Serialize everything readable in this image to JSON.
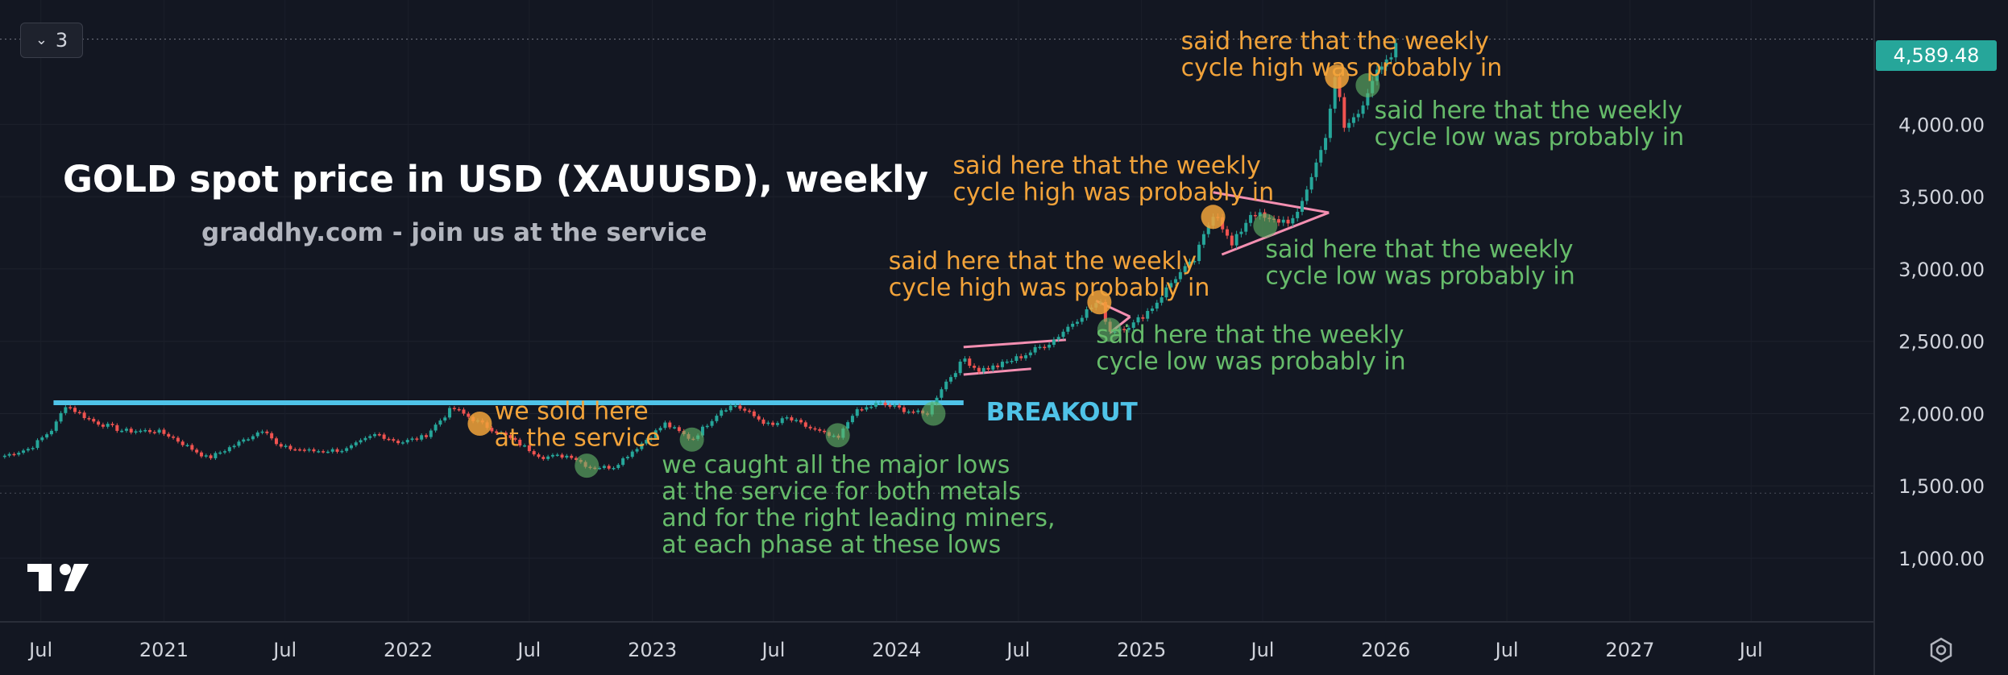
{
  "toolbar": {
    "collapse_label": "3",
    "collapse_icon": "chevron-down-icon"
  },
  "chart_data": {
    "type": "candlestick",
    "title": "GOLD spot price in USD (XAUUSD), weekly",
    "subtitle": "graddhy.com - join us at the service",
    "last_price": "4,589.48",
    "colors": {
      "up": "#26a69a",
      "down": "#ef5350",
      "orange": "#f2a33a",
      "green": "#66bb6a",
      "cyan": "#4fc3e8",
      "pink": "#f48fb1"
    },
    "y_ticks": [
      {
        "value": 4000,
        "label": "4,000.00"
      },
      {
        "value": 3500,
        "label": "3,500.00"
      },
      {
        "value": 3000,
        "label": "3,000.00"
      },
      {
        "value": 2500,
        "label": "2,500.00"
      },
      {
        "value": 2000,
        "label": "2,000.00"
      },
      {
        "value": 1500,
        "label": "1,500.00"
      },
      {
        "value": 1000,
        "label": "1,000.00"
      }
    ],
    "ylim": [
      560,
      4860
    ],
    "x_range": [
      "2020-05-01",
      "2028-01-01"
    ],
    "x_ticks": [
      {
        "date": "2020-07-01",
        "label": "Jul"
      },
      {
        "date": "2021-01-01",
        "label": "2021"
      },
      {
        "date": "2021-07-01",
        "label": "Jul"
      },
      {
        "date": "2022-01-01",
        "label": "2022"
      },
      {
        "date": "2022-07-01",
        "label": "Jul"
      },
      {
        "date": "2023-01-01",
        "label": "2023"
      },
      {
        "date": "2023-07-01",
        "label": "Jul"
      },
      {
        "date": "2024-01-01",
        "label": "2024"
      },
      {
        "date": "2024-07-01",
        "label": "Jul"
      },
      {
        "date": "2025-01-01",
        "label": "2025"
      },
      {
        "date": "2025-07-01",
        "label": "Jul"
      },
      {
        "date": "2026-01-01",
        "label": "2026"
      },
      {
        "date": "2026-07-01",
        "label": "Jul"
      },
      {
        "date": "2027-01-01",
        "label": "2027"
      },
      {
        "date": "2027-07-01",
        "label": "Jul"
      }
    ],
    "series": [
      {
        "name": "XAUUSD",
        "points": [
          [
            "2020-05-01",
            1700
          ],
          [
            "2020-06-15",
            1760
          ],
          [
            "2020-07-20",
            1900
          ],
          [
            "2020-08-07",
            2060
          ],
          [
            "2020-09-15",
            1950
          ],
          [
            "2020-11-01",
            1880
          ],
          [
            "2020-12-20",
            1880
          ],
          [
            "2021-01-08",
            1850
          ],
          [
            "2021-03-08",
            1690
          ],
          [
            "2021-04-20",
            1790
          ],
          [
            "2021-06-01",
            1900
          ],
          [
            "2021-06-20",
            1770
          ],
          [
            "2021-08-10",
            1740
          ],
          [
            "2021-09-30",
            1750
          ],
          [
            "2021-11-15",
            1860
          ],
          [
            "2021-12-20",
            1800
          ],
          [
            "2022-01-25",
            1840
          ],
          [
            "2022-03-08",
            2040
          ],
          [
            "2022-04-20",
            1930
          ],
          [
            "2022-05-25",
            1850
          ],
          [
            "2022-07-20",
            1700
          ],
          [
            "2022-09-01",
            1710
          ],
          [
            "2022-09-28",
            1630
          ],
          [
            "2022-11-03",
            1630
          ],
          [
            "2022-12-15",
            1790
          ],
          [
            "2023-01-20",
            1930
          ],
          [
            "2023-03-01",
            1820
          ],
          [
            "2023-04-14",
            2030
          ],
          [
            "2023-05-04",
            2060
          ],
          [
            "2023-06-28",
            1910
          ],
          [
            "2023-07-20",
            1970
          ],
          [
            "2023-08-24",
            1900
          ],
          [
            "2023-10-05",
            1820
          ],
          [
            "2023-10-27",
            2000
          ],
          [
            "2023-12-04",
            2070
          ],
          [
            "2024-01-18",
            2020
          ],
          [
            "2024-02-14",
            1990
          ],
          [
            "2024-03-08",
            2180
          ],
          [
            "2024-04-12",
            2380
          ],
          [
            "2024-05-01",
            2300
          ],
          [
            "2024-06-01",
            2330
          ],
          [
            "2024-07-12",
            2410
          ],
          [
            "2024-08-20",
            2500
          ],
          [
            "2024-09-25",
            2650
          ],
          [
            "2024-10-30",
            2780
          ],
          [
            "2024-11-14",
            2570
          ],
          [
            "2024-12-20",
            2620
          ],
          [
            "2025-01-20",
            2750
          ],
          [
            "2025-02-20",
            2940
          ],
          [
            "2025-03-20",
            3050
          ],
          [
            "2025-04-21",
            3420
          ],
          [
            "2025-05-15",
            3150
          ],
          [
            "2025-06-15",
            3400
          ],
          [
            "2025-07-10",
            3330
          ],
          [
            "2025-08-20",
            3340
          ],
          [
            "2025-09-05",
            3560
          ],
          [
            "2025-10-01",
            3880
          ],
          [
            "2025-10-20",
            4380
          ],
          [
            "2025-10-28",
            3960
          ],
          [
            "2025-11-20",
            4070
          ],
          [
            "2025-12-10",
            4300
          ],
          [
            "2026-01-05",
            4430
          ],
          [
            "2026-01-22",
            4589.48
          ]
        ]
      }
    ],
    "horizontal_lines": [
      {
        "y": 2075,
        "from": "2020-07-20",
        "to": "2024-04-10",
        "color": "cyan",
        "label": "BREAKOUT"
      }
    ],
    "patterns": [
      {
        "type": "channel",
        "lines": [
          [
            [
              "2024-04-10",
              2460
            ],
            [
              "2024-09-10",
              2510
            ]
          ],
          [
            [
              "2024-04-10",
              2270
            ],
            [
              "2024-07-20",
              2310
            ]
          ]
        ]
      },
      {
        "type": "triangle",
        "lines": [
          [
            [
              "2024-10-25",
              2780
            ],
            [
              "2024-12-15",
              2670
            ]
          ],
          [
            [
              "2024-11-15",
              2560
            ],
            [
              "2024-12-15",
              2670
            ]
          ]
        ]
      },
      {
        "type": "triangle",
        "lines": [
          [
            [
              "2025-04-18",
              3530
            ],
            [
              "2025-10-08",
              3390
            ]
          ],
          [
            [
              "2025-05-01",
              3100
            ],
            [
              "2025-10-08",
              3390
            ]
          ]
        ]
      }
    ],
    "markers": [
      {
        "date": "2022-04-18",
        "y": 1930,
        "color": "orange"
      },
      {
        "date": "2022-09-25",
        "y": 1640,
        "color": "green"
      },
      {
        "date": "2023-03-01",
        "y": 1820,
        "color": "green"
      },
      {
        "date": "2023-10-05",
        "y": 1850,
        "color": "green"
      },
      {
        "date": "2024-02-25",
        "y": 2000,
        "color": "green"
      },
      {
        "date": "2024-10-30",
        "y": 2770,
        "color": "orange"
      },
      {
        "date": "2024-11-14",
        "y": 2580,
        "color": "green"
      },
      {
        "date": "2025-04-18",
        "y": 3360,
        "color": "orange"
      },
      {
        "date": "2025-07-05",
        "y": 3300,
        "color": "green"
      },
      {
        "date": "2025-10-20",
        "y": 4330,
        "color": "orange"
      },
      {
        "date": "2025-12-05",
        "y": 4270,
        "color": "green"
      }
    ],
    "annotations": [
      {
        "lines": [
          "we sold here",
          "at the service"
        ],
        "color": "orange",
        "date": "2022-05-10",
        "y": 1960
      },
      {
        "lines": [
          "we caught all the major lows",
          "at the service for both metals",
          "and for the right leading miners,",
          "at each phase at these lows"
        ],
        "color": "green",
        "date": "2023-01-15",
        "y": 1590
      },
      {
        "lines": [
          "said here that the weekly",
          "cycle low was probably in"
        ],
        "color": "green",
        "date": "2024-10-25",
        "y": 2490
      },
      {
        "lines": [
          "said here that the weekly",
          "cycle high was probably in"
        ],
        "color": "orange",
        "date": "2023-12-20",
        "y": 3000
      },
      {
        "lines": [
          "said here that the weekly",
          "cycle high was probably in"
        ],
        "color": "orange",
        "date": "2024-03-25",
        "y": 3660
      },
      {
        "lines": [
          "said here that the weekly",
          "cycle low was probably in"
        ],
        "color": "green",
        "date": "2025-07-05",
        "y": 3080
      },
      {
        "lines": [
          "said here that the weekly",
          "cycle high was probably in"
        ],
        "color": "orange",
        "date": "2025-03-01",
        "y": 4520
      },
      {
        "lines": [
          "said here that the weekly",
          "cycle low was probably in"
        ],
        "color": "green",
        "date": "2025-12-15",
        "y": 4040
      }
    ]
  }
}
